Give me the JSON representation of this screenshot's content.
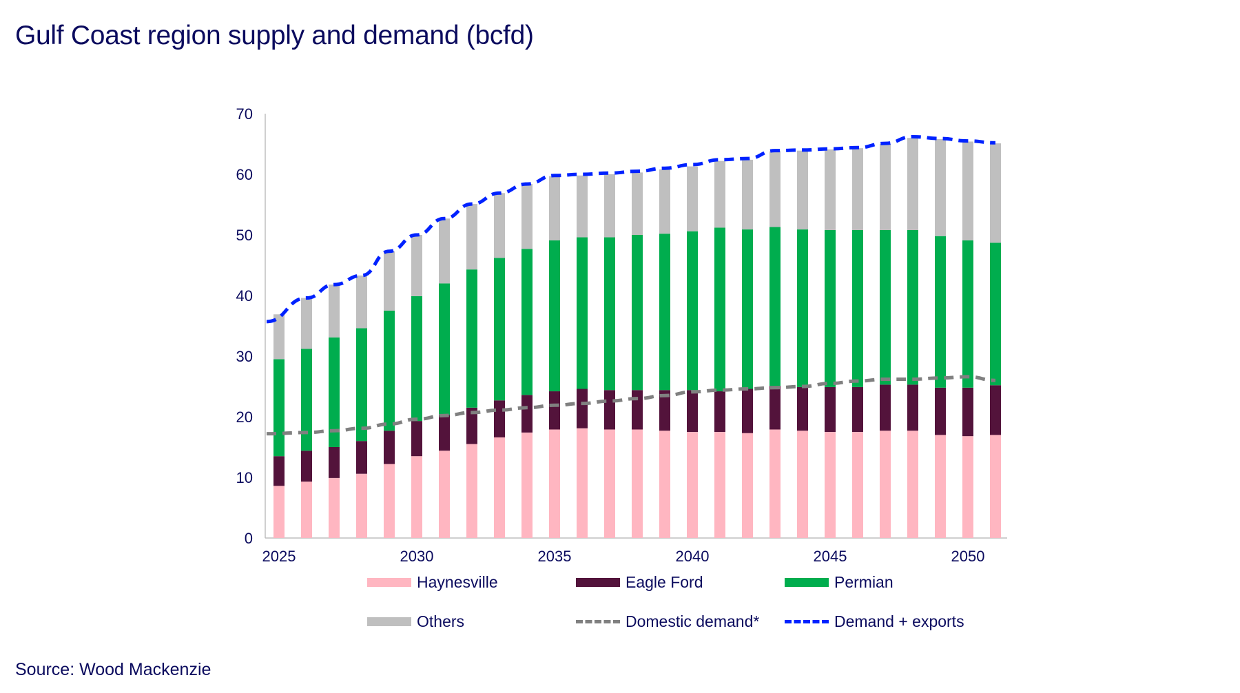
{
  "title": "Gulf Coast region supply and demand (bcfd)",
  "source": "Source: Wood Mackenzie",
  "chart_data": {
    "type": "bar",
    "stacked": true,
    "title": "Gulf Coast region supply and demand (bcfd)",
    "xlabel": "",
    "ylabel": "",
    "ylim": [
      0,
      70
    ],
    "yticks": [
      "0",
      "10",
      "20",
      "30",
      "40",
      "50",
      "60",
      "70"
    ],
    "xticks": [
      "2025",
      "2030",
      "2035",
      "2040",
      "2045",
      "2050"
    ],
    "categories": [
      2025,
      2026,
      2027,
      2028,
      2029,
      2030,
      2031,
      2032,
      2033,
      2034,
      2035,
      2036,
      2037,
      2038,
      2039,
      2040,
      2041,
      2042,
      2043,
      2044,
      2045,
      2046,
      2047,
      2048,
      2049,
      2050,
      2051
    ],
    "series": [
      {
        "name": "Haynesville",
        "kind": "bar",
        "color": "#ffb6c1",
        "values": [
          8.6,
          9.3,
          9.9,
          10.6,
          12.2,
          13.5,
          14.4,
          15.5,
          16.6,
          17.4,
          17.9,
          18.1,
          17.9,
          17.9,
          17.7,
          17.5,
          17.5,
          17.3,
          17.9,
          17.7,
          17.5,
          17.5,
          17.7,
          17.7,
          17.0,
          16.8,
          17.0
        ]
      },
      {
        "name": "Eagle Ford",
        "kind": "bar",
        "color": "#53133b",
        "values": [
          4.9,
          5.1,
          5.1,
          5.4,
          5.5,
          5.8,
          5.9,
          6.0,
          6.1,
          6.2,
          6.3,
          6.5,
          6.5,
          6.5,
          6.7,
          6.9,
          6.7,
          7.3,
          7.2,
          7.2,
          7.4,
          7.4,
          7.6,
          7.6,
          7.8,
          8.0,
          8.2
        ]
      },
      {
        "name": "Permian",
        "kind": "bar",
        "color": "#00ad4e",
        "values": [
          16.0,
          16.8,
          18.1,
          18.6,
          19.8,
          20.6,
          21.7,
          22.8,
          23.5,
          24.1,
          24.9,
          25.0,
          25.2,
          25.6,
          25.8,
          26.2,
          27.0,
          26.3,
          26.2,
          26.0,
          25.9,
          25.9,
          25.5,
          25.5,
          25.0,
          24.3,
          23.5
        ]
      },
      {
        "name": "Others",
        "kind": "bar",
        "color": "#bfbfbf",
        "values": [
          7.4,
          8.4,
          8.7,
          8.7,
          9.8,
          10.1,
          10.7,
          10.8,
          10.7,
          10.7,
          10.6,
          10.2,
          10.4,
          10.3,
          10.6,
          10.7,
          11.0,
          11.5,
          12.5,
          13.0,
          13.3,
          13.5,
          14.2,
          15.2,
          16.0,
          16.3,
          16.4
        ]
      },
      {
        "name": "Domestic demand*",
        "kind": "line",
        "color": "#808080",
        "values": [
          17.2,
          17.4,
          17.7,
          18.1,
          18.8,
          19.6,
          20.2,
          20.7,
          21.1,
          21.5,
          21.9,
          22.2,
          22.6,
          23.0,
          23.5,
          24.1,
          24.4,
          24.6,
          24.8,
          25.0,
          25.5,
          25.9,
          26.2,
          26.2,
          26.4,
          26.6,
          26.0
        ]
      },
      {
        "name": "Demand + exports",
        "kind": "line",
        "color": "#0022ff",
        "values": [
          35.7,
          39.6,
          41.8,
          43.3,
          47.3,
          50.0,
          52.7,
          55.1,
          56.9,
          58.4,
          59.8,
          60.0,
          60.2,
          60.5,
          61.0,
          61.6,
          62.4,
          62.6,
          63.9,
          64.0,
          64.2,
          64.4,
          65.1,
          66.2,
          65.9,
          65.5,
          65.2
        ]
      }
    ],
    "legend_position": "bottom",
    "grid": false
  }
}
